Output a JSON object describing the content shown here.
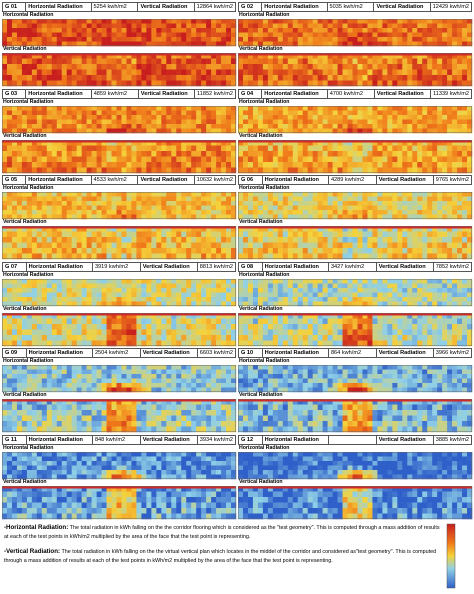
{
  "panels": [
    {
      "id": "G 01",
      "horizontal_label": "Horizontal Radiation",
      "horizontal_value": "5254 kwh/m2",
      "vertical_label": "Vertical Radiation",
      "vertical_value": "12864 kwh/m2",
      "horizontal_strip_label": "Horizontal Radiation",
      "vertical_strip_label": "Vertical Radiation"
    },
    {
      "id": "G 02",
      "horizontal_label": "Horizontal Radiation",
      "horizontal_value": "5035 kwh/m2",
      "vertical_label": "Vertical Radiation",
      "vertical_value": "12429 kwh/m2",
      "horizontal_strip_label": "Horizontal Radiation",
      "vertical_strip_label": "Vertical Radiation"
    },
    {
      "id": "G 03",
      "horizontal_label": "Horizontal Radiation",
      "horizontal_value": "4859 kwh/m2",
      "vertical_label": "Vertical Radiation",
      "vertical_value": "11852 kwh/m2",
      "horizontal_strip_label": "Horizontal Radiation",
      "vertical_strip_label": "Vertical Radiation"
    },
    {
      "id": "G 04",
      "horizontal_label": "Horizontal Radiation",
      "horizontal_value": "4700 kwh/m2",
      "vertical_label": "Vertical Radiation",
      "vertical_value": "11339 kwh/m2",
      "horizontal_strip_label": "Horizontal Radiation",
      "vertical_strip_label": "Vertical Radiation"
    },
    {
      "id": "G 05",
      "horizontal_label": "Horizontal Radiation",
      "horizontal_value": "4533 kwh/m2",
      "vertical_label": "Vertical Radiation",
      "vertical_value": "10632 kwh/m2",
      "horizontal_strip_label": "Horizontal Radiation",
      "vertical_strip_label": "Vertical Radiation"
    },
    {
      "id": "G 06",
      "horizontal_label": "Horizontal Radiation",
      "horizontal_value": "4289 kwh/m2",
      "vertical_label": "Vertical Radiation",
      "vertical_value": "9765 kwh/m2",
      "horizontal_strip_label": "Horizontal Radiation",
      "vertical_strip_label": "Vertical Radiation"
    },
    {
      "id": "G 07",
      "horizontal_label": "Horizontal Radiation",
      "horizontal_value": "3919 kwh/m2",
      "vertical_label": "Vertical Radiation",
      "vertical_value": "8813 kwh/m2",
      "horizontal_strip_label": "Horizontal Radiation",
      "vertical_strip_label": "Vertical Radiation"
    },
    {
      "id": "G 08",
      "horizontal_label": "Horizontal Radiation",
      "horizontal_value": "3427 kwh/m2",
      "vertical_label": "Vertical Radiation",
      "vertical_value": "7852 kwh/m2",
      "horizontal_strip_label": "Horizontal Radiation",
      "vertical_strip_label": "Vertical Radiation"
    },
    {
      "id": "G 09",
      "horizontal_label": "Horizontal Radiation",
      "horizontal_value": "2504 kwh/m2",
      "vertical_label": "Vertical Radiation",
      "vertical_value": "6603 kwh/m2",
      "horizontal_strip_label": "Horizontal Radiation",
      "vertical_strip_label": "Vertical Radiation"
    },
    {
      "id": "G 10",
      "horizontal_label": "Horizontal Radiation",
      "horizontal_value": "864 kwh/m2",
      "vertical_label": "Vertical Radiation",
      "vertical_value": "3966 kwh/m2",
      "horizontal_strip_label": "Horizontal Radiation",
      "vertical_strip_label": "Vertical Radiation"
    },
    {
      "id": "G 11",
      "horizontal_label": "Horizontal Radiation",
      "horizontal_value": "848 kwh/m2",
      "vertical_label": "Vertical Radiation",
      "vertical_value": "3934 kwh/m2",
      "horizontal_strip_label": "Horizontal Radiation",
      "vertical_strip_label": "Vertical Radiation"
    },
    {
      "id": "G 12",
      "horizontal_label": "Horizontal Radiation",
      "vertical_label": "Vertical Radiation",
      "vertical_value": "3885 kwh/m2",
      "horizontal_strip_label": "Horizontal Radiation",
      "vertical_strip_label": "Vertical Radiation"
    }
  ],
  "notes": [
    {
      "term": "-Horizontal Radiation:",
      "text": " The total radiation in kWh falling on the the corridor flooring which is considered as the \"test geometry\". This is computed through a mass addition of results at each of the test points in kWh/m2 multiplied by the area of the face that the test point is representing."
    },
    {
      "term": "-Vertical Radiation:",
      "text": " The total radiation in kWh falling on the the virtual vertical plan which locates in the middel of the corridor and considered as\"test geometry\". This is computed through a mass addition of results at each of the test points in kWh/m2 multiplied by the area of the face that the test point is representing."
    }
  ]
}
